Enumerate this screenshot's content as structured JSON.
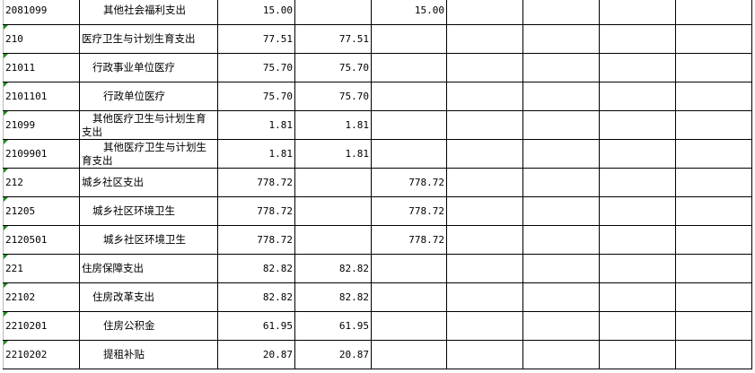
{
  "rows": [
    {
      "code": "2081099",
      "name": "其他社会福利支出",
      "total": "15.00",
      "c2": "",
      "c3": "15.00",
      "level": 3,
      "marker": false
    },
    {
      "code": "210",
      "name": "医疗卫生与计划生育支出",
      "total": "77.51",
      "c2": "77.51",
      "c3": "",
      "level": 1,
      "marker": true
    },
    {
      "code": "21011",
      "name": "行政事业单位医疗",
      "total": "75.70",
      "c2": "75.70",
      "c3": "",
      "level": 2,
      "marker": true
    },
    {
      "code": "2101101",
      "name": "行政单位医疗",
      "total": "75.70",
      "c2": "75.70",
      "c3": "",
      "level": 3,
      "marker": true
    },
    {
      "code": "21099",
      "name": "其他医疗卫生与计划生育支出",
      "total": "1.81",
      "c2": "1.81",
      "c3": "",
      "level": 2,
      "marker": true
    },
    {
      "code": "2109901",
      "name": "其他医疗卫生与计划生育支出",
      "total": "1.81",
      "c2": "1.81",
      "c3": "",
      "level": 3,
      "marker": true
    },
    {
      "code": "212",
      "name": "城乡社区支出",
      "total": "778.72",
      "c2": "",
      "c3": "778.72",
      "level": 1,
      "marker": true
    },
    {
      "code": "21205",
      "name": "城乡社区环境卫生",
      "total": "778.72",
      "c2": "",
      "c3": "778.72",
      "level": 2,
      "marker": true
    },
    {
      "code": "2120501",
      "name": "城乡社区环境卫生",
      "total": "778.72",
      "c2": "",
      "c3": "778.72",
      "level": 3,
      "marker": true
    },
    {
      "code": "221",
      "name": "住房保障支出",
      "total": "82.82",
      "c2": "82.82",
      "c3": "",
      "level": 1,
      "marker": true
    },
    {
      "code": "22102",
      "name": "住房改革支出",
      "total": "82.82",
      "c2": "82.82",
      "c3": "",
      "level": 2,
      "marker": true
    },
    {
      "code": "2210201",
      "name": "住房公积金",
      "total": "61.95",
      "c2": "61.95",
      "c3": "",
      "level": 3,
      "marker": true
    },
    {
      "code": "2210202",
      "name": "提租补贴",
      "total": "20.87",
      "c2": "20.87",
      "c3": "",
      "level": 3,
      "marker": true
    }
  ],
  "colors": {
    "border": "#000000",
    "marker": "#1a8a1a"
  }
}
